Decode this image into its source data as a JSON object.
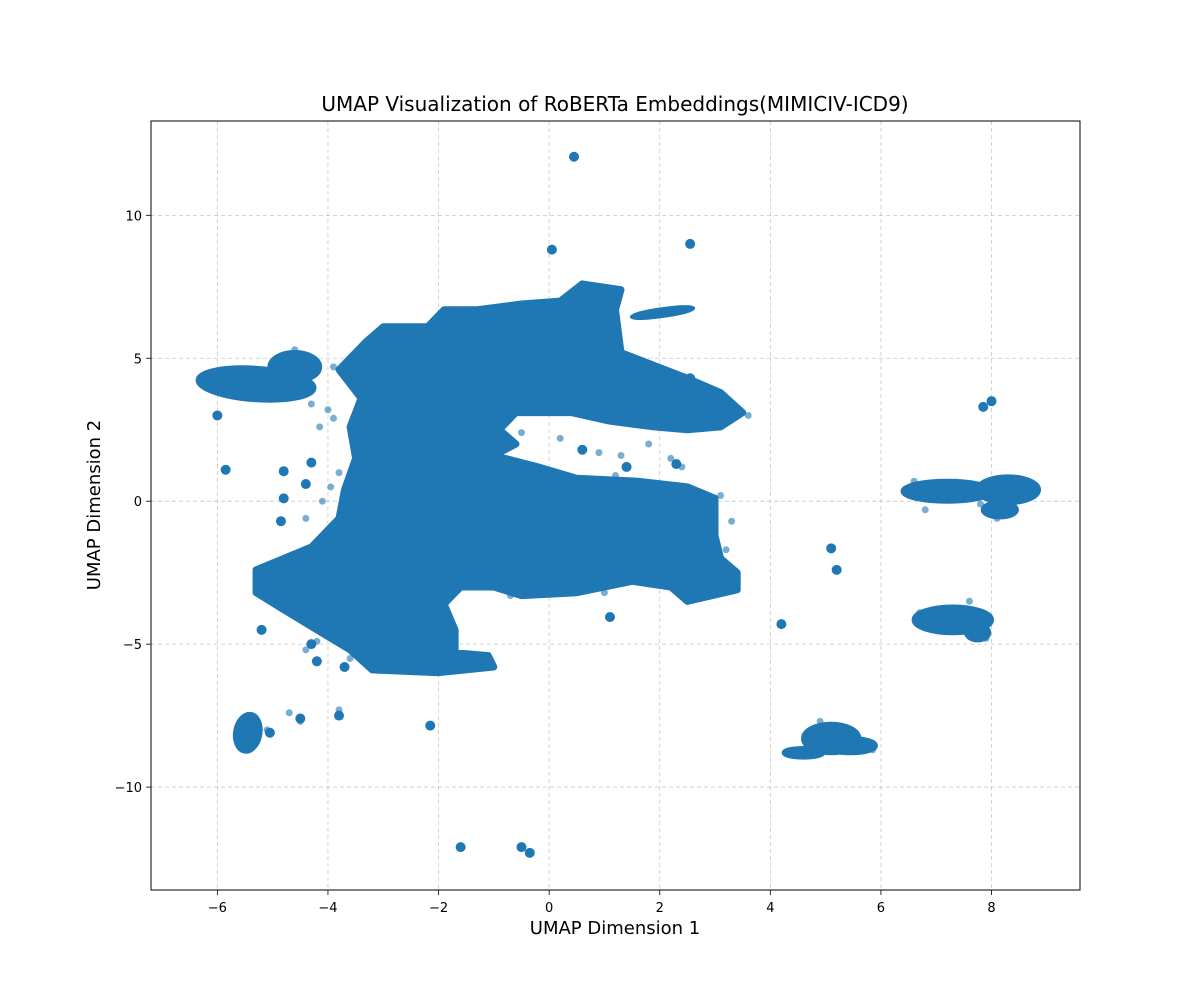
{
  "chart_data": {
    "type": "scatter",
    "title": "UMAP Visualization of RoBERTa Embeddings(MIMICIV-ICD9)",
    "xlabel": "UMAP Dimension 1",
    "ylabel": "UMAP Dimension 2",
    "xlim": [
      -7.2,
      9.6
    ],
    "ylim": [
      -13.6,
      13.3
    ],
    "xticks": [
      -6,
      -4,
      -2,
      0,
      2,
      4,
      6,
      8
    ],
    "yticks": [
      -10,
      -5,
      0,
      5,
      10
    ],
    "xtick_labels": [
      "−6",
      "−4",
      "−2",
      "0",
      "2",
      "4",
      "6",
      "8"
    ],
    "ytick_labels": [
      "−10",
      "−5",
      "0",
      "5",
      "10"
    ],
    "grid": true,
    "marker_color": "#1f77b4",
    "marker_alpha": 0.6,
    "main_mass_polygon": [
      [
        -5.3,
        -2.4
      ],
      [
        -4.3,
        -1.6
      ],
      [
        -3.8,
        -0.6
      ],
      [
        -3.7,
        0.4
      ],
      [
        -3.5,
        1.5
      ],
      [
        -3.6,
        2.6
      ],
      [
        -3.4,
        3.6
      ],
      [
        -3.8,
        4.6
      ],
      [
        -3.3,
        5.6
      ],
      [
        -3.0,
        6.1
      ],
      [
        -2.2,
        6.1
      ],
      [
        -1.9,
        6.7
      ],
      [
        -1.3,
        6.7
      ],
      [
        -0.5,
        6.9
      ],
      [
        0.2,
        7.0
      ],
      [
        0.6,
        7.6
      ],
      [
        1.3,
        7.4
      ],
      [
        1.2,
        6.7
      ],
      [
        1.3,
        5.2
      ],
      [
        2.5,
        4.3
      ],
      [
        3.1,
        3.8
      ],
      [
        3.5,
        3.1
      ],
      [
        3.1,
        2.6
      ],
      [
        2.5,
        2.5
      ],
      [
        1.9,
        2.6
      ],
      [
        1.1,
        2.8
      ],
      [
        0.4,
        3.1
      ],
      [
        -0.6,
        3.1
      ],
      [
        -0.9,
        2.5
      ],
      [
        -0.6,
        2.0
      ],
      [
        -1.0,
        1.6
      ],
      [
        -0.2,
        1.2
      ],
      [
        0.5,
        0.8
      ],
      [
        1.6,
        0.7
      ],
      [
        2.5,
        0.5
      ],
      [
        3.0,
        0.1
      ],
      [
        3.0,
        -1.2
      ],
      [
        3.1,
        -2.0
      ],
      [
        3.4,
        -2.5
      ],
      [
        3.4,
        -3.1
      ],
      [
        2.5,
        -3.5
      ],
      [
        2.2,
        -3.0
      ],
      [
        1.5,
        -2.8
      ],
      [
        0.5,
        -3.2
      ],
      [
        -0.5,
        -3.3
      ],
      [
        -1.0,
        -3.0
      ],
      [
        -1.6,
        -3.0
      ],
      [
        -1.9,
        -3.6
      ],
      [
        -1.7,
        -4.5
      ],
      [
        -1.7,
        -5.3
      ],
      [
        -1.1,
        -5.4
      ],
      [
        -1.0,
        -5.8
      ],
      [
        -2.0,
        -6.0
      ],
      [
        -3.2,
        -5.9
      ],
      [
        -3.6,
        -5.2
      ],
      [
        -4.2,
        -4.5
      ],
      [
        -4.8,
        -3.8
      ],
      [
        -5.3,
        -3.2
      ]
    ],
    "clusters": [
      {
        "name": "left-arm",
        "type": "ellipse",
        "cx": -5.3,
        "cy": 4.1,
        "rx": 1.05,
        "ry": 0.55,
        "rot": 4
      },
      {
        "name": "left-arm-tip",
        "type": "ellipse",
        "cx": -4.6,
        "cy": 4.7,
        "rx": 0.45,
        "ry": 0.5,
        "rot": 0
      },
      {
        "name": "right-main-a",
        "type": "ellipse",
        "cx": 7.2,
        "cy": 0.35,
        "rx": 0.8,
        "ry": 0.35,
        "rot": 0
      },
      {
        "name": "right-main-b",
        "type": "ellipse",
        "cx": 8.3,
        "cy": 0.4,
        "rx": 0.55,
        "ry": 0.45,
        "rot": 0
      },
      {
        "name": "right-main-c",
        "type": "ellipse",
        "cx": 8.15,
        "cy": -0.3,
        "rx": 0.3,
        "ry": 0.25,
        "rot": 0
      },
      {
        "name": "lower-right",
        "type": "ellipse",
        "cx": 7.3,
        "cy": -4.15,
        "rx": 0.7,
        "ry": 0.45,
        "rot": 0
      },
      {
        "name": "lower-right-tail",
        "type": "ellipse",
        "cx": 7.75,
        "cy": -4.6,
        "rx": 0.2,
        "ry": 0.25,
        "rot": 0
      },
      {
        "name": "bottom-right-a",
        "type": "ellipse",
        "cx": 5.1,
        "cy": -8.3,
        "rx": 0.5,
        "ry": 0.5,
        "rot": 0
      },
      {
        "name": "bottom-right-b",
        "type": "ellipse",
        "cx": 5.45,
        "cy": -8.55,
        "rx": 0.45,
        "ry": 0.25,
        "rot": 0
      },
      {
        "name": "bottom-right-c",
        "type": "ellipse",
        "cx": 4.6,
        "cy": -8.8,
        "rx": 0.35,
        "ry": 0.15,
        "rot": 0
      },
      {
        "name": "bottom-left",
        "type": "ellipse",
        "cx": -5.45,
        "cy": -8.1,
        "rx": 0.22,
        "ry": 0.65,
        "rot": 10
      },
      {
        "name": "top-right-strip",
        "type": "ellipse",
        "cx": 2.05,
        "cy": 6.6,
        "rx": 0.55,
        "ry": 0.1,
        "rot": -8
      }
    ],
    "small_groups": [
      [
        0.45,
        12.05
      ],
      [
        0.05,
        8.8
      ],
      [
        2.55,
        9.0
      ],
      [
        -1.6,
        -12.1
      ],
      [
        -0.5,
        -12.1
      ],
      [
        -0.35,
        -12.3
      ],
      [
        -6.0,
        3.0
      ],
      [
        -5.85,
        1.1
      ],
      [
        -4.8,
        1.05
      ],
      [
        -4.8,
        0.1
      ],
      [
        -4.85,
        -0.7
      ],
      [
        -4.3,
        1.35
      ],
      [
        -4.4,
        0.6
      ],
      [
        -5.2,
        -4.5
      ],
      [
        -4.2,
        -5.6
      ],
      [
        -3.8,
        -7.5
      ],
      [
        -2.15,
        -7.85
      ],
      [
        -3.7,
        -5.8
      ],
      [
        -4.3,
        -5.0
      ],
      [
        5.1,
        -1.65
      ],
      [
        5.2,
        -2.4
      ],
      [
        4.2,
        -4.3
      ],
      [
        1.1,
        -4.05
      ],
      [
        7.85,
        3.3
      ],
      [
        8.0,
        3.5
      ],
      [
        2.55,
        4.3
      ],
      [
        0.55,
        4.5
      ],
      [
        -0.3,
        4.9
      ],
      [
        0.6,
        1.8
      ],
      [
        1.4,
        1.2
      ],
      [
        2.3,
        1.3
      ],
      [
        -4.5,
        -7.6
      ],
      [
        -5.05,
        -8.1
      ]
    ],
    "outlier_points": [
      [
        -4.6,
        5.3
      ],
      [
        -4.3,
        3.4
      ],
      [
        -4.0,
        3.2
      ],
      [
        -3.9,
        2.9
      ],
      [
        -4.15,
        2.6
      ],
      [
        -3.8,
        1.0
      ],
      [
        -3.95,
        0.5
      ],
      [
        -4.1,
        0.0
      ],
      [
        -4.4,
        -0.6
      ],
      [
        -4.2,
        -4.9
      ],
      [
        -4.4,
        -5.2
      ],
      [
        -3.6,
        -5.5
      ],
      [
        -3.8,
        -7.3
      ],
      [
        -4.5,
        -7.7
      ],
      [
        -5.1,
        -8.0
      ],
      [
        -4.7,
        -7.4
      ],
      [
        -0.9,
        2.2
      ],
      [
        -0.5,
        2.4
      ],
      [
        0.2,
        2.2
      ],
      [
        0.9,
        1.7
      ],
      [
        1.3,
        1.6
      ],
      [
        1.2,
        0.9
      ],
      [
        2.2,
        1.5
      ],
      [
        1.8,
        2.0
      ],
      [
        2.4,
        1.2
      ],
      [
        3.1,
        0.2
      ],
      [
        3.3,
        -0.7
      ],
      [
        3.2,
        -1.7
      ],
      [
        2.9,
        -2.2
      ],
      [
        1.0,
        -3.2
      ],
      [
        1.1,
        -4.1
      ],
      [
        4.9,
        -7.7
      ],
      [
        4.3,
        -8.8
      ],
      [
        5.85,
        -8.7
      ],
      [
        6.6,
        0.7
      ],
      [
        6.8,
        -0.3
      ],
      [
        8.1,
        -0.6
      ],
      [
        7.8,
        -0.1
      ],
      [
        6.7,
        -3.9
      ],
      [
        7.6,
        -3.5
      ],
      [
        7.9,
        -4.8
      ],
      [
        3.6,
        3.0
      ],
      [
        2.2,
        6.6
      ],
      [
        1.9,
        6.5
      ],
      [
        -2.8,
        6.1
      ],
      [
        -3.9,
        4.7
      ],
      [
        -3.5,
        5.1
      ],
      [
        -3.3,
        -5.0
      ],
      [
        -1.5,
        -5.6
      ],
      [
        0.5,
        7.3
      ],
      [
        1.2,
        6.4
      ],
      [
        -0.7,
        -3.3
      ],
      [
        2.6,
        -3.3
      ],
      [
        3.3,
        -2.8
      ],
      [
        -5.0,
        -2.8
      ],
      [
        -4.7,
        -2.0
      ]
    ]
  }
}
